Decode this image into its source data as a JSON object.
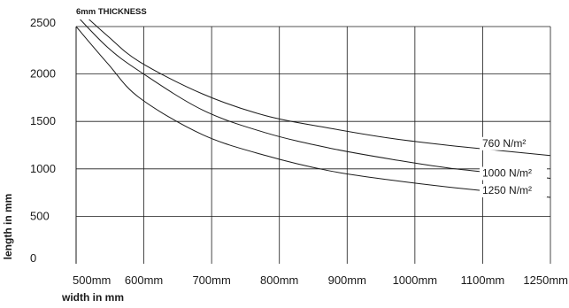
{
  "chart_data": {
    "type": "line",
    "title": "6mm THICKNESS",
    "xlabel": "width in mm",
    "ylabel": "length in mm",
    "xlim": [
      500,
      1250
    ],
    "ylim": [
      0,
      2500
    ],
    "grid": true,
    "x_tick_labels": [
      "500mm",
      "600mm",
      "700mm",
      "800mm",
      "900mm",
      "1000mm",
      "1100mm",
      "1250mm"
    ],
    "y_tick_labels": [
      "0",
      "500",
      "1000",
      "1500",
      "2000",
      "2500"
    ],
    "series": [
      {
        "name": "760 N/m²",
        "x": [
          500,
          550,
          600,
          700,
          800,
          900,
          1000,
          1100,
          1250
        ],
        "y": [
          2700,
          2400,
          2130,
          1790,
          1560,
          1430,
          1320,
          1240,
          1140
        ]
      },
      {
        "name": "1000 N/m²",
        "x": [
          500,
          550,
          600,
          700,
          800,
          900,
          1000,
          1100,
          1250
        ],
        "y": [
          2620,
          2280,
          2030,
          1620,
          1380,
          1220,
          1100,
          1000,
          900
        ]
      },
      {
        "name": "1250 N/m²",
        "x": [
          500,
          550,
          600,
          700,
          800,
          900,
          1000,
          1100,
          1250
        ],
        "y": [
          2500,
          2110,
          1750,
          1360,
          1140,
          980,
          880,
          800,
          700
        ]
      }
    ],
    "colors": {
      "line": "#1a1a1a",
      "grid": "#1a1a1a",
      "background": "#ffffff"
    }
  }
}
